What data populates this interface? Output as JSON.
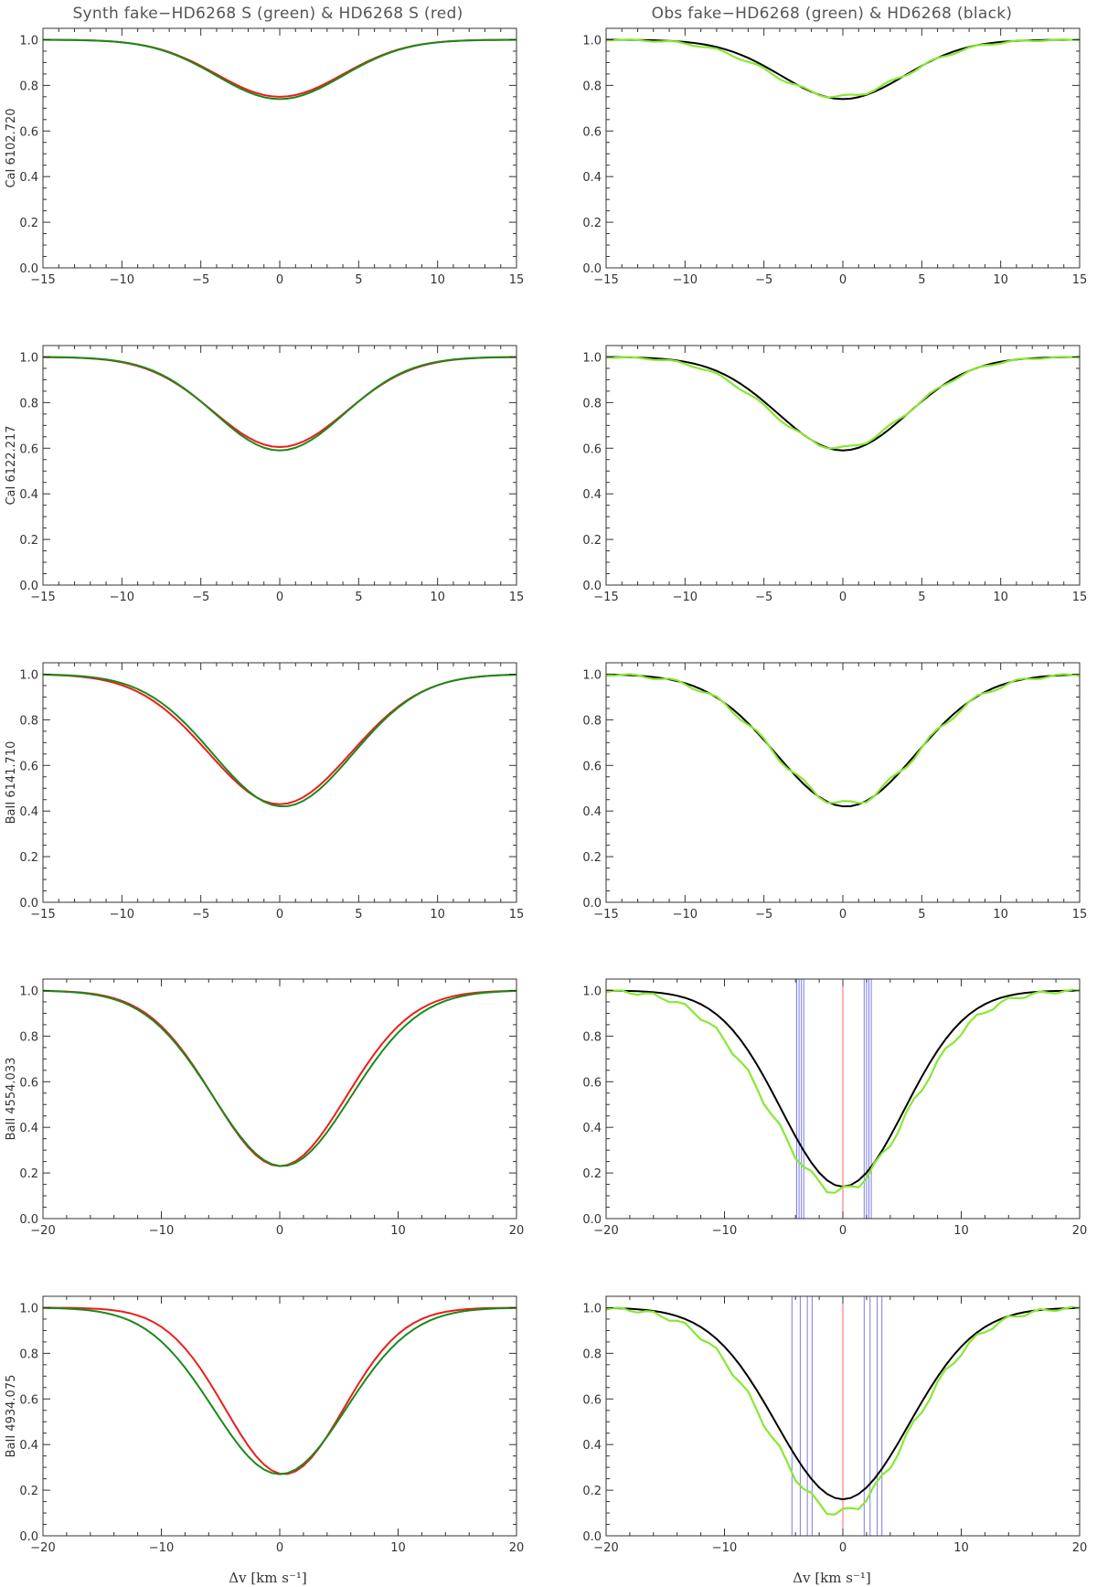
{
  "columns": [
    {
      "title": "Synth fake−HD6268 S (green) & HD6268 S (red)"
    },
    {
      "title": "Obs fake−HD6268 (green) & HD6268 (black)"
    }
  ],
  "xlabel": "Δv [km s⁻¹]",
  "colors": {
    "green": "#1a8a1a",
    "red": "#ee1c1c",
    "lightgreen": "#88e833",
    "black": "#000000",
    "blue": "#7a7aee",
    "pink": "#ee6a6a"
  },
  "chart_data": [
    {
      "type": "line",
      "row": 0,
      "col": 0,
      "ylabel": "CaI  6102.720",
      "xlim": [
        -15,
        15
      ],
      "ylim": [
        0,
        1.05
      ],
      "xticks": [
        -15,
        -10,
        -5,
        0,
        5,
        10,
        15
      ],
      "yticks": [
        "0.0",
        "0.2",
        "0.4",
        "0.6",
        "0.8",
        "1.0"
      ],
      "series": [
        {
          "color": "red",
          "depth": 0.25,
          "width": 4.0,
          "center": 0
        },
        {
          "color": "green",
          "depth": 0.26,
          "width": 4.0,
          "center": 0
        }
      ],
      "markers": []
    },
    {
      "type": "line",
      "row": 0,
      "col": 1,
      "ylabel": "",
      "xlim": [
        -15,
        15
      ],
      "ylim": [
        0,
        1.05
      ],
      "xticks": [
        -15,
        -10,
        -5,
        0,
        5,
        10,
        15
      ],
      "yticks": [
        "0.0",
        "0.2",
        "0.4",
        "0.6",
        "0.8",
        "1.0"
      ],
      "series": [
        {
          "color": "black",
          "depth": 0.26,
          "width": 3.9,
          "center": 0
        },
        {
          "color": "lightgreen",
          "depth": 0.25,
          "width": 4.2,
          "center": -0.2,
          "jag": 0.008
        }
      ],
      "markers": []
    },
    {
      "type": "line",
      "row": 1,
      "col": 0,
      "ylabel": "CaI  6122.217",
      "xlim": [
        -15,
        15
      ],
      "ylim": [
        0,
        1.05
      ],
      "xticks": [
        -15,
        -10,
        -5,
        0,
        5,
        10,
        15
      ],
      "yticks": [
        "0.0",
        "0.2",
        "0.4",
        "0.6",
        "0.8",
        "1.0"
      ],
      "series": [
        {
          "color": "red",
          "depth": 0.395,
          "width": 4.2,
          "center": 0
        },
        {
          "color": "green",
          "depth": 0.41,
          "width": 4.1,
          "center": 0
        }
      ],
      "markers": []
    },
    {
      "type": "line",
      "row": 1,
      "col": 1,
      "ylabel": "",
      "xlim": [
        -15,
        15
      ],
      "ylim": [
        0,
        1.05
      ],
      "xticks": [
        -15,
        -10,
        -5,
        0,
        5,
        10,
        15
      ],
      "yticks": [
        "0.0",
        "0.2",
        "0.4",
        "0.6",
        "0.8",
        "1.0"
      ],
      "series": [
        {
          "color": "black",
          "depth": 0.41,
          "width": 4.1,
          "center": 0
        },
        {
          "color": "lightgreen",
          "depth": 0.4,
          "width": 4.3,
          "center": -0.2,
          "jag": 0.008
        }
      ],
      "markers": []
    },
    {
      "type": "line",
      "row": 2,
      "col": 0,
      "ylabel": "BaII 6141.710",
      "xlim": [
        -15,
        15
      ],
      "ylim": [
        0,
        1.05
      ],
      "xticks": [
        -15,
        -10,
        -5,
        0,
        5,
        10,
        15
      ],
      "yticks": [
        "0.0",
        "0.2",
        "0.4",
        "0.6",
        "0.8",
        "1.0"
      ],
      "series": [
        {
          "color": "red",
          "depth": 0.57,
          "width": 4.5,
          "center": 0
        },
        {
          "color": "green",
          "depth": 0.58,
          "width": 4.4,
          "center": 0.2
        }
      ],
      "markers": []
    },
    {
      "type": "line",
      "row": 2,
      "col": 1,
      "ylabel": "",
      "xlim": [
        -15,
        15
      ],
      "ylim": [
        0,
        1.05
      ],
      "xticks": [
        -15,
        -10,
        -5,
        0,
        5,
        10,
        15
      ],
      "yticks": [
        "0.0",
        "0.2",
        "0.4",
        "0.6",
        "0.8",
        "1.0"
      ],
      "series": [
        {
          "color": "black",
          "depth": 0.58,
          "width": 4.4,
          "center": 0.2
        },
        {
          "color": "lightgreen",
          "depth": 0.57,
          "width": 4.5,
          "center": 0.2,
          "jag": 0.015
        }
      ],
      "markers": []
    },
    {
      "type": "line",
      "row": 3,
      "col": 0,
      "ylabel": "BaII 4554.033",
      "xlim": [
        -20,
        20
      ],
      "ylim": [
        0,
        1.05
      ],
      "xticks": [
        -20,
        -10,
        0,
        10,
        20
      ],
      "yticks": [
        "0.0",
        "0.2",
        "0.4",
        "0.6",
        "0.8",
        "1.0"
      ],
      "series": [
        {
          "color": "red",
          "depth": 0.77,
          "width": 5.6,
          "center": 0
        },
        {
          "color": "green",
          "depth": 0.77,
          "width": 5.8,
          "center": 0.2
        }
      ],
      "markers": []
    },
    {
      "type": "line",
      "row": 3,
      "col": 1,
      "ylabel": "",
      "xlim": [
        -20,
        20
      ],
      "ylim": [
        0,
        1.05
      ],
      "xticks": [
        -20,
        -10,
        0,
        10,
        20
      ],
      "yticks": [
        "0.0",
        "0.2",
        "0.4",
        "0.6",
        "0.8",
        "1.0"
      ],
      "series": [
        {
          "color": "black",
          "depth": 0.86,
          "width": 5.2,
          "center": 0
        },
        {
          "color": "lightgreen",
          "depth": 0.88,
          "width": 5.8,
          "center": -0.3,
          "jag": 0.02
        }
      ],
      "markers": [
        {
          "color": "blue",
          "x": [
            -3.9,
            -3.7,
            -3.5,
            -3.3,
            1.8,
            2.0,
            2.2,
            2.4
          ]
        },
        {
          "color": "pink",
          "x": [
            0
          ]
        }
      ]
    },
    {
      "type": "line",
      "row": 4,
      "col": 0,
      "ylabel": "BaII 4934.075",
      "xlim": [
        -20,
        20
      ],
      "ylim": [
        0,
        1.05
      ],
      "xticks": [
        -20,
        -10,
        0,
        10,
        20
      ],
      "yticks": [
        "0.0",
        "0.2",
        "0.4",
        "0.6",
        "0.8",
        "1.0"
      ],
      "series": [
        {
          "color": "red",
          "depth": 0.73,
          "width": 5.0,
          "center": 0.4
        },
        {
          "color": "green",
          "depth": 0.73,
          "width": 5.6,
          "center": 0
        }
      ],
      "markers": []
    },
    {
      "type": "line",
      "row": 4,
      "col": 1,
      "ylabel": "",
      "xlim": [
        -20,
        20
      ],
      "ylim": [
        0,
        1.05
      ],
      "xticks": [
        -20,
        -10,
        0,
        10,
        20
      ],
      "yticks": [
        "0.0",
        "0.2",
        "0.4",
        "0.6",
        "0.8",
        "1.0"
      ],
      "series": [
        {
          "color": "black",
          "depth": 0.84,
          "width": 5.6,
          "center": 0
        },
        {
          "color": "lightgreen",
          "depth": 0.9,
          "width": 5.9,
          "center": -0.3,
          "jag": 0.02
        }
      ],
      "markers": [
        {
          "color": "blue",
          "x": [
            -4.3,
            -3.6,
            -3.0,
            -2.6,
            1.8,
            2.3,
            2.9,
            3.3
          ]
        },
        {
          "color": "pink",
          "x": [
            0
          ]
        }
      ]
    }
  ]
}
